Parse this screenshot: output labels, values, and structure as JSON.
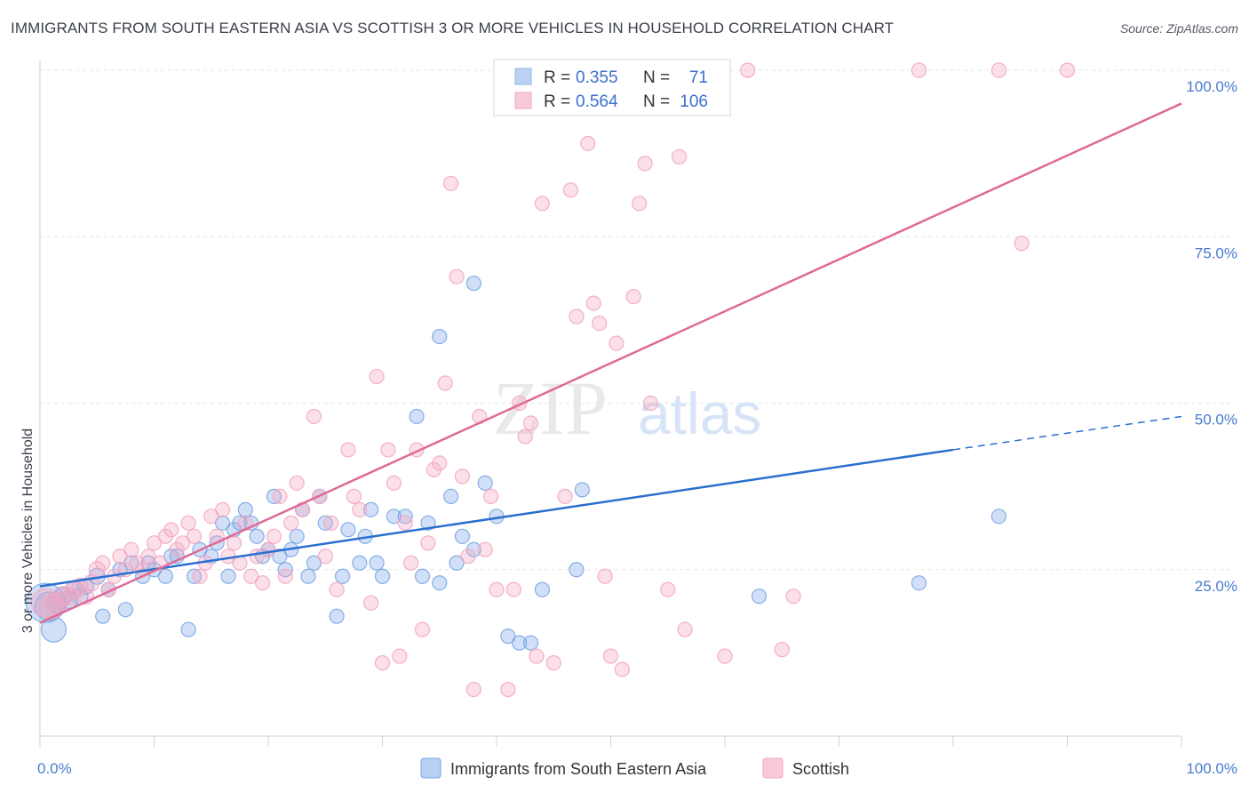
{
  "header": {
    "title": "IMMIGRANTS FROM SOUTH EASTERN ASIA VS SCOTTISH 3 OR MORE VEHICLES IN HOUSEHOLD CORRELATION CHART",
    "source": "Source: ZipAtlas.com"
  },
  "watermark": {
    "zip": "ZIP",
    "atlas": "atlas"
  },
  "chart_data": {
    "type": "scatter",
    "title": "IMMIGRANTS FROM SOUTH EASTERN ASIA VS SCOTTISH 3 OR MORE VEHICLES IN HOUSEHOLD CORRELATION CHART",
    "ylabel": "3 or more Vehicles in Household",
    "xlabel": "",
    "xlim": [
      0,
      100
    ],
    "ylim": [
      0,
      100
    ],
    "x_tick_labels": [
      {
        "value": 0,
        "label": "0.0%"
      },
      {
        "value": 100,
        "label": "100.0%"
      }
    ],
    "y_tick_labels": [
      {
        "value": 25,
        "label": "25.0%"
      },
      {
        "value": 50,
        "label": "50.0%"
      },
      {
        "value": 75,
        "label": "75.0%"
      },
      {
        "value": 100,
        "label": "100.0%"
      }
    ],
    "grid": true,
    "legend_placement": "top-center",
    "stats_legend": [
      {
        "r_label": "R =",
        "r_value": "0.355",
        "n_label": "N =",
        "n_value": "71",
        "color": "#8fb4ea"
      },
      {
        "r_label": "R =",
        "r_value": "0.564",
        "n_label": "N =",
        "n_value": "106",
        "color": "#f0a6bf"
      }
    ],
    "series": [
      {
        "name": "Immigrants from South Eastern Asia",
        "color": "#7aa6e6",
        "line_color": "#2a6fcf",
        "trend": {
          "x0": 0,
          "y0": 22.5,
          "x1": 80,
          "y1": 43,
          "x_dash_end": 100,
          "y_dash_end": 48
        },
        "points": [
          [
            0.5,
            20,
            22
          ],
          [
            0.8,
            19.5,
            16
          ],
          [
            1.2,
            16,
            14
          ],
          [
            1.5,
            20,
            12
          ],
          [
            2,
            21,
            10
          ],
          [
            2.5,
            20.5,
            10
          ],
          [
            3,
            22,
            10
          ],
          [
            3.5,
            21,
            9
          ],
          [
            4,
            22.5,
            9
          ],
          [
            5,
            24,
            9
          ],
          [
            5.5,
            18,
            8
          ],
          [
            6,
            22,
            8
          ],
          [
            7,
            25,
            8
          ],
          [
            7.5,
            19,
            8
          ],
          [
            8,
            26,
            8
          ],
          [
            9,
            24,
            8
          ],
          [
            9.5,
            26,
            8
          ],
          [
            10,
            25,
            8
          ],
          [
            11,
            24,
            8
          ],
          [
            11.5,
            27,
            8
          ],
          [
            12,
            27,
            8
          ],
          [
            13,
            16,
            8
          ],
          [
            13.5,
            24,
            8
          ],
          [
            14,
            28,
            8
          ],
          [
            15,
            27,
            8
          ],
          [
            15.5,
            29,
            8
          ],
          [
            16,
            32,
            8
          ],
          [
            16.5,
            24,
            8
          ],
          [
            17,
            31,
            8
          ],
          [
            17.5,
            32,
            8
          ],
          [
            18,
            34,
            8
          ],
          [
            18.5,
            32,
            8
          ],
          [
            19,
            30,
            8
          ],
          [
            19.5,
            27,
            8
          ],
          [
            20,
            28,
            8
          ],
          [
            20.5,
            36,
            8
          ],
          [
            21,
            27,
            8
          ],
          [
            21.5,
            25,
            8
          ],
          [
            22,
            28,
            8
          ],
          [
            22.5,
            30,
            8
          ],
          [
            23,
            34,
            8
          ],
          [
            23.5,
            24,
            8
          ],
          [
            24,
            26,
            8
          ],
          [
            24.5,
            36,
            8
          ],
          [
            25,
            32,
            8
          ],
          [
            26,
            18,
            8
          ],
          [
            26.5,
            24,
            8
          ],
          [
            27,
            31,
            8
          ],
          [
            28,
            26,
            8
          ],
          [
            28.5,
            30,
            8
          ],
          [
            29,
            34,
            8
          ],
          [
            29.5,
            26,
            8
          ],
          [
            30,
            24,
            8
          ],
          [
            31,
            33,
            8
          ],
          [
            32,
            33,
            8
          ],
          [
            33,
            48,
            8
          ],
          [
            33.5,
            24,
            8
          ],
          [
            34,
            32,
            8
          ],
          [
            35,
            23,
            8
          ],
          [
            36,
            36,
            8
          ],
          [
            36.5,
            26,
            8
          ],
          [
            37,
            30,
            8
          ],
          [
            38,
            28,
            8
          ],
          [
            39,
            38,
            8
          ],
          [
            40,
            33,
            8
          ],
          [
            41,
            15,
            8
          ],
          [
            42,
            14,
            8
          ],
          [
            43,
            14,
            8
          ],
          [
            44,
            22,
            8
          ],
          [
            47,
            25,
            8
          ],
          [
            47.5,
            37,
            8
          ],
          [
            63,
            21,
            8
          ],
          [
            77,
            23,
            8
          ],
          [
            84,
            33,
            8
          ],
          [
            35,
            60,
            8
          ],
          [
            38,
            68,
            8
          ]
        ]
      },
      {
        "name": "Scottish",
        "color": "#f3a7c1",
        "line_color": "#e06a95",
        "trend": {
          "x0": 0,
          "y0": 17,
          "x1": 100,
          "y1": 95
        },
        "points": [
          [
            0.5,
            20,
            16
          ],
          [
            1,
            19.5,
            14
          ],
          [
            1.5,
            20,
            12
          ],
          [
            2,
            21,
            11
          ],
          [
            2.5,
            21,
            10
          ],
          [
            3,
            22,
            10
          ],
          [
            3.5,
            22.5,
            9
          ],
          [
            4,
            21,
            9
          ],
          [
            4.5,
            23,
            9
          ],
          [
            5,
            25,
            9
          ],
          [
            5.5,
            26,
            8
          ],
          [
            6,
            22,
            8
          ],
          [
            6.5,
            24,
            8
          ],
          [
            7,
            27,
            8
          ],
          [
            7.5,
            25,
            8
          ],
          [
            8,
            28,
            8
          ],
          [
            8.5,
            26,
            8
          ],
          [
            9,
            25,
            8
          ],
          [
            9.5,
            27,
            8
          ],
          [
            10,
            29,
            8
          ],
          [
            10.5,
            26,
            8
          ],
          [
            11,
            30,
            8
          ],
          [
            11.5,
            31,
            8
          ],
          [
            12,
            28,
            8
          ],
          [
            12.5,
            29,
            8
          ],
          [
            13,
            32,
            8
          ],
          [
            13.5,
            30,
            8
          ],
          [
            14,
            24,
            8
          ],
          [
            14.5,
            26,
            8
          ],
          [
            15,
            33,
            8
          ],
          [
            15.5,
            30,
            8
          ],
          [
            16,
            34,
            8
          ],
          [
            16.5,
            27,
            8
          ],
          [
            17,
            29,
            8
          ],
          [
            17.5,
            26,
            8
          ],
          [
            18,
            32,
            8
          ],
          [
            18.5,
            24,
            8
          ],
          [
            19,
            27,
            8
          ],
          [
            19.5,
            23,
            8
          ],
          [
            20,
            28,
            8
          ],
          [
            20.5,
            30,
            8
          ],
          [
            21,
            36,
            8
          ],
          [
            21.5,
            24,
            8
          ],
          [
            22,
            32,
            8
          ],
          [
            22.5,
            38,
            8
          ],
          [
            23,
            34,
            8
          ],
          [
            24,
            48,
            8
          ],
          [
            24.5,
            36,
            8
          ],
          [
            25,
            27,
            8
          ],
          [
            25.5,
            32,
            8
          ],
          [
            26,
            22,
            8
          ],
          [
            27,
            43,
            8
          ],
          [
            27.5,
            36,
            8
          ],
          [
            28,
            34,
            8
          ],
          [
            29,
            20,
            8
          ],
          [
            29.5,
            54,
            8
          ],
          [
            30,
            11,
            8
          ],
          [
            30.5,
            43,
            8
          ],
          [
            31,
            38,
            8
          ],
          [
            31.5,
            12,
            8
          ],
          [
            32,
            32,
            8
          ],
          [
            32.5,
            26,
            8
          ],
          [
            33,
            43,
            8
          ],
          [
            33.5,
            16,
            8
          ],
          [
            34,
            29,
            8
          ],
          [
            34.5,
            40,
            8
          ],
          [
            35,
            41,
            8
          ],
          [
            35.5,
            53,
            8
          ],
          [
            36,
            83,
            8
          ],
          [
            36.5,
            69,
            8
          ],
          [
            37,
            39,
            8
          ],
          [
            37.5,
            27,
            8
          ],
          [
            38,
            7,
            8
          ],
          [
            38.5,
            48,
            8
          ],
          [
            39,
            28,
            8
          ],
          [
            39.5,
            36,
            8
          ],
          [
            40,
            22,
            8
          ],
          [
            41,
            7,
            8
          ],
          [
            41.5,
            22,
            8
          ],
          [
            42,
            50,
            8
          ],
          [
            42.5,
            45,
            8
          ],
          [
            43,
            47,
            8
          ],
          [
            43.5,
            12,
            8
          ],
          [
            44,
            80,
            8
          ],
          [
            44.5,
            100,
            8
          ],
          [
            45,
            11,
            8
          ],
          [
            46,
            36,
            8
          ],
          [
            46.5,
            82,
            8
          ],
          [
            47,
            63,
            8
          ],
          [
            48,
            89,
            8
          ],
          [
            48.5,
            65,
            8
          ],
          [
            49,
            62,
            8
          ],
          [
            49.5,
            24,
            8
          ],
          [
            50,
            12,
            8
          ],
          [
            50.5,
            59,
            8
          ],
          [
            51,
            10,
            8
          ],
          [
            52,
            66,
            8
          ],
          [
            52.5,
            80,
            8
          ],
          [
            53,
            86,
            8
          ],
          [
            53.5,
            50,
            8
          ],
          [
            55,
            22,
            8
          ],
          [
            56,
            87,
            8
          ],
          [
            56.5,
            16,
            8
          ],
          [
            58,
            100,
            8
          ],
          [
            59,
            100,
            8
          ],
          [
            60,
            12,
            8
          ],
          [
            62,
            100,
            8
          ],
          [
            65,
            13,
            8
          ],
          [
            66,
            21,
            8
          ],
          [
            77,
            100,
            8
          ],
          [
            84,
            100,
            8
          ],
          [
            86,
            74,
            8
          ],
          [
            90,
            100,
            8
          ]
        ]
      }
    ]
  },
  "bottom_legend": {
    "items": [
      {
        "label": "Immigrants from South Eastern Asia",
        "color": "#b8d0f3",
        "border": "#7aa6e6"
      },
      {
        "label": "Scottish",
        "color": "#f9c9d8",
        "border": "#f0a6bf"
      }
    ]
  }
}
